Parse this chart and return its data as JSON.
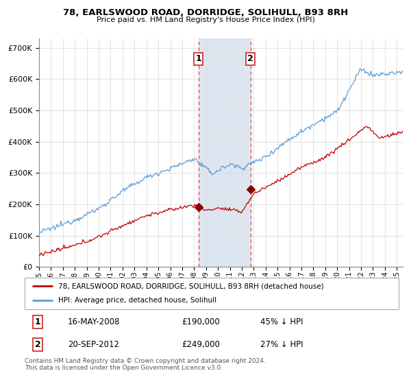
{
  "title": "78, EARLSWOOD ROAD, DORRIDGE, SOLIHULL, B93 8RH",
  "subtitle": "Price paid vs. HM Land Registry's House Price Index (HPI)",
  "xlim_start": 1995.0,
  "xlim_end": 2025.5,
  "ylim_min": 0,
  "ylim_max": 730000,
  "purchase1_date": 2008.37,
  "purchase1_price": 190000,
  "purchase1_label": "1",
  "purchase2_date": 2012.72,
  "purchase2_price": 249000,
  "purchase2_label": "2",
  "legend_line1": "78, EARLSWOOD ROAD, DORRIDGE, SOLIHULL, B93 8RH (detached house)",
  "legend_line2": "HPI: Average price, detached house, Solihull",
  "hpi_color": "#5b9bd5",
  "price_color": "#c00000",
  "highlight_color": "#dce6f1",
  "vline_color": "#e84040",
  "dot_color": "#8b0000",
  "grid_color": "#dddddd",
  "footer": "Contains HM Land Registry data © Crown copyright and database right 2024.\nThis data is licensed under the Open Government Licence v3.0."
}
